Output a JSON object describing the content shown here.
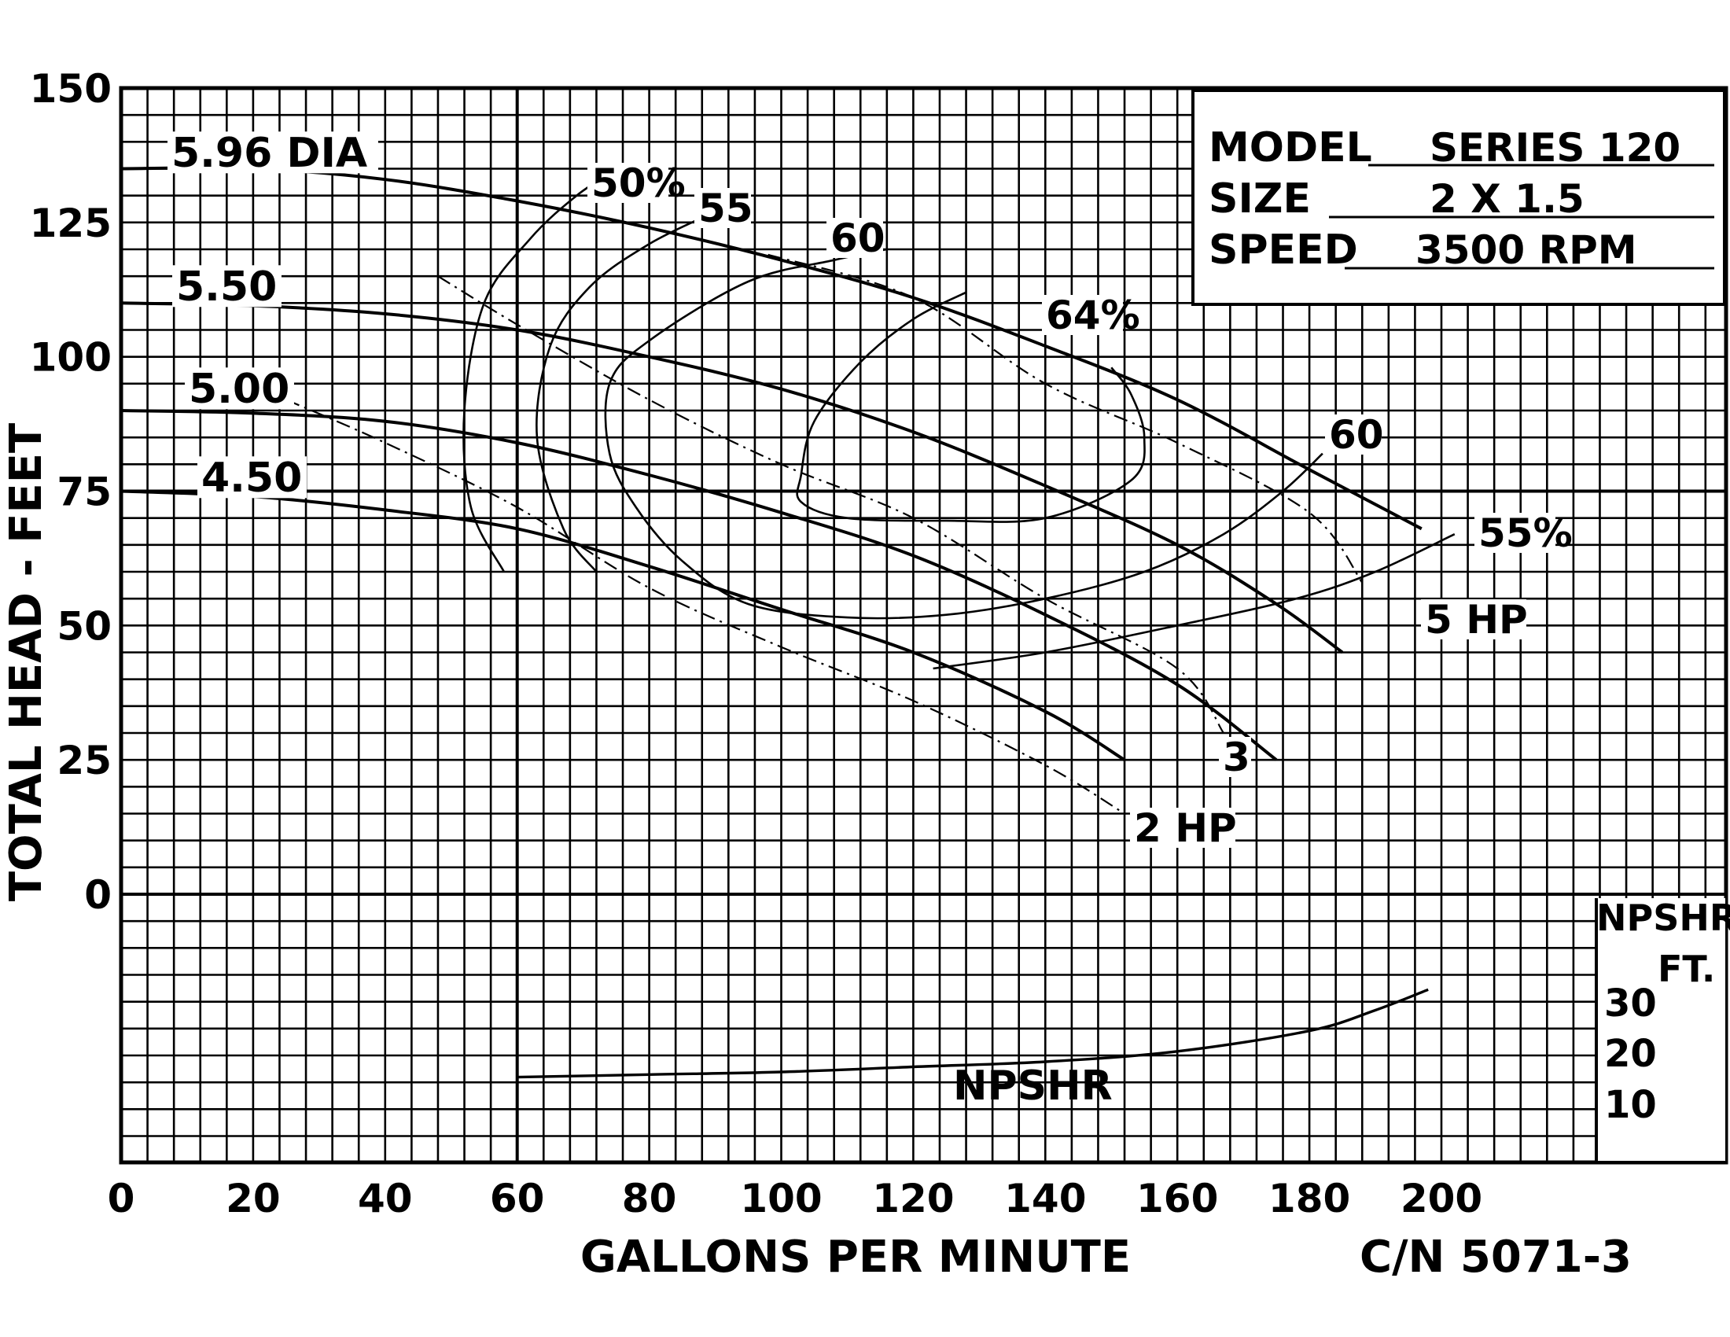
{
  "chart_data": {
    "type": "line",
    "xlabel": "GALLONS PER MINUTE",
    "ylabel": "TOTAL HEAD - FEET",
    "xlim": [
      0,
      200
    ],
    "ylim": [
      0,
      150
    ],
    "x_ticks": [
      "0",
      "20",
      "40",
      "60",
      "80",
      "100",
      "120",
      "140",
      "160",
      "180",
      "200"
    ],
    "y_ticks": [
      "0",
      "25",
      "50",
      "75",
      "100",
      "125",
      "150"
    ],
    "grid": true,
    "info_box": {
      "model_label": "MODEL",
      "model_value": "SERIES 120",
      "size_label": "SIZE",
      "size_value": "2 X 1.5",
      "speed_label": "SPEED",
      "speed_value": "3500 RPM"
    },
    "catalog_number": "C/N 5071-3",
    "npshr_axis": {
      "title_line1": "NPSHR",
      "title_line2": "FT.",
      "ticks": [
        "30",
        "20",
        "10"
      ]
    },
    "impeller_curves": [
      {
        "label": "5.96 DIA",
        "points": [
          [
            0,
            135
          ],
          [
            20,
            135
          ],
          [
            40,
            133
          ],
          [
            60,
            129
          ],
          [
            80,
            124
          ],
          [
            100,
            118
          ],
          [
            120,
            111
          ],
          [
            140,
            102
          ],
          [
            160,
            92
          ],
          [
            180,
            79
          ],
          [
            197,
            68
          ]
        ]
      },
      {
        "label": "5.50",
        "points": [
          [
            0,
            110
          ],
          [
            20,
            109.5
          ],
          [
            40,
            108
          ],
          [
            60,
            105
          ],
          [
            80,
            100
          ],
          [
            100,
            94
          ],
          [
            120,
            86
          ],
          [
            140,
            76
          ],
          [
            160,
            65
          ],
          [
            175,
            54
          ],
          [
            185,
            45
          ]
        ]
      },
      {
        "label": "5.00",
        "points": [
          [
            0,
            90
          ],
          [
            20,
            89.5
          ],
          [
            40,
            88
          ],
          [
            60,
            84
          ],
          [
            80,
            78
          ],
          [
            100,
            71
          ],
          [
            120,
            63
          ],
          [
            140,
            52
          ],
          [
            160,
            39
          ],
          [
            175,
            25
          ]
        ]
      },
      {
        "label": "4.50",
        "points": [
          [
            0,
            75
          ],
          [
            20,
            74
          ],
          [
            40,
            71.5
          ],
          [
            60,
            68
          ],
          [
            80,
            61
          ],
          [
            100,
            53
          ],
          [
            120,
            45
          ],
          [
            140,
            34
          ],
          [
            152,
            25
          ]
        ]
      }
    ],
    "efficiency_curves": [
      {
        "label": "50%",
        "points": [
          [
            58,
            60
          ],
          [
            53,
            72
          ],
          [
            52,
            90
          ],
          [
            55,
            110
          ],
          [
            62,
            122
          ],
          [
            69,
            130
          ],
          [
            74,
            134
          ]
        ]
      },
      {
        "label": "55",
        "points": [
          [
            72,
            60
          ],
          [
            67,
            68
          ],
          [
            63,
            85
          ],
          [
            65,
            102
          ],
          [
            71,
            113
          ],
          [
            80,
            121
          ],
          [
            90,
            127
          ]
        ]
      },
      {
        "label": "55%",
        "points": [
          [
            123,
            42
          ],
          [
            140,
            45
          ],
          [
            160,
            50
          ],
          [
            178,
            55
          ],
          [
            190,
            60
          ],
          [
            202,
            67
          ]
        ]
      },
      {
        "label": "60",
        "points": [
          [
            182,
            82
          ],
          [
            176,
            75
          ],
          [
            167,
            67
          ],
          [
            155,
            60
          ],
          [
            140,
            55
          ],
          [
            125,
            52
          ],
          [
            110,
            51.5
          ],
          [
            95,
            54
          ],
          [
            85,
            62
          ],
          [
            78,
            72
          ],
          [
            74,
            82
          ],
          [
            74,
            95
          ],
          [
            80,
            103
          ],
          [
            95,
            114
          ],
          [
            108,
            118
          ],
          [
            116,
            120
          ]
        ]
      },
      {
        "label": "64%",
        "points": [
          [
            128,
            112
          ],
          [
            120,
            107
          ],
          [
            112,
            99
          ],
          [
            105,
            88
          ],
          [
            103,
            78
          ],
          [
            103,
            73
          ],
          [
            110,
            70
          ],
          [
            125,
            69.5
          ],
          [
            140,
            70
          ],
          [
            153,
            77
          ],
          [
            155,
            85
          ],
          [
            153,
            93
          ],
          [
            150,
            98
          ]
        ]
      }
    ],
    "power_lines": [
      {
        "label": "5 HP",
        "points": [
          [
            98,
            119
          ],
          [
            120,
            111
          ],
          [
            140,
            95
          ],
          [
            160,
            84
          ],
          [
            180,
            71
          ],
          [
            188,
            58
          ]
        ]
      },
      {
        "label": "3",
        "points": [
          [
            48,
            115
          ],
          [
            60,
            106
          ],
          [
            80,
            92
          ],
          [
            100,
            80
          ],
          [
            120,
            70
          ],
          [
            140,
            55
          ],
          [
            160,
            42
          ],
          [
            167,
            30
          ]
        ]
      },
      {
        "label": "2 HP",
        "points": [
          [
            25,
            92
          ],
          [
            40,
            84
          ],
          [
            60,
            72
          ],
          [
            80,
            57
          ],
          [
            100,
            46
          ],
          [
            120,
            36
          ],
          [
            140,
            24
          ],
          [
            152,
            15
          ]
        ]
      }
    ],
    "npshr": {
      "label": "NPSHR",
      "points": [
        [
          60,
          8
        ],
        [
          80,
          8.5
        ],
        [
          100,
          9
        ],
        [
          120,
          10
        ],
        [
          140,
          11
        ],
        [
          160,
          13
        ],
        [
          180,
          17
        ],
        [
          190,
          21
        ],
        [
          198,
          25
        ]
      ]
    }
  }
}
